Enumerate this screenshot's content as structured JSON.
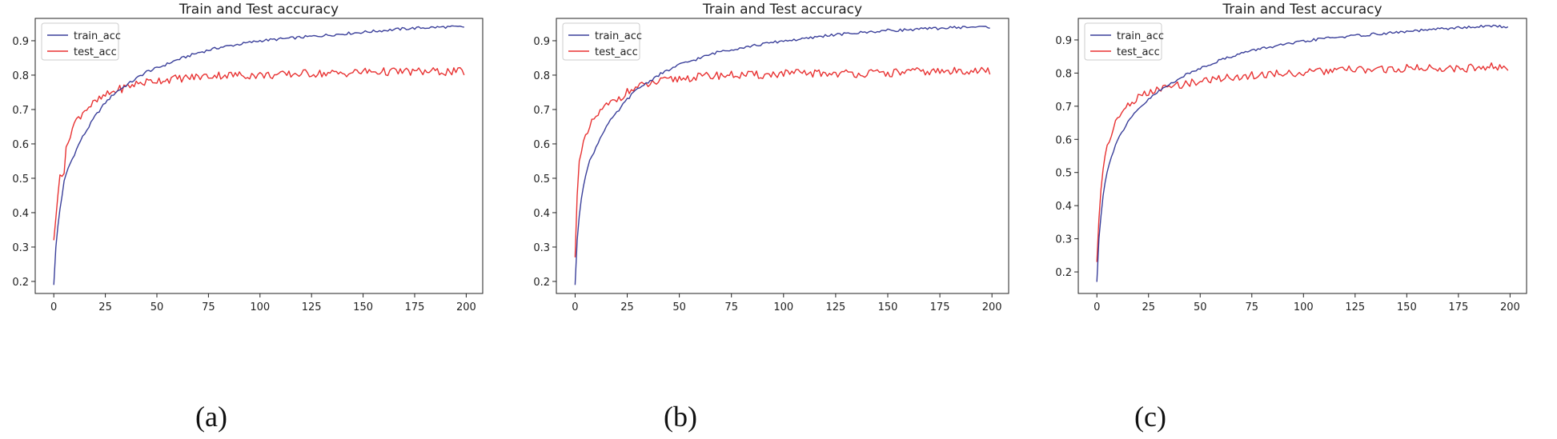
{
  "figure": {
    "captions": [
      "(a)",
      "(b)",
      "(c)"
    ]
  },
  "colors": {
    "train": "#3a3f9a",
    "test": "#e83232",
    "axis": "#222222",
    "text": "#222222"
  },
  "chart_data": [
    {
      "type": "line",
      "title": "Train and Test accuracy",
      "xlabel": "",
      "ylabel": "",
      "xlim": [
        -9,
        208
      ],
      "ylim": [
        0.165,
        0.965
      ],
      "xticks": [
        0,
        25,
        50,
        75,
        100,
        125,
        150,
        175,
        200
      ],
      "yticks": [
        0.2,
        0.3,
        0.4,
        0.5,
        0.6,
        0.7,
        0.8,
        0.9
      ],
      "legend": "upper-left",
      "grid": false,
      "series": [
        {
          "name": "train_acc",
          "color": "#3a3f9a",
          "points": [
            [
              0,
              0.19
            ],
            [
              1,
              0.3
            ],
            [
              2,
              0.36
            ],
            [
              3,
              0.41
            ],
            [
              4,
              0.45
            ],
            [
              5,
              0.49
            ],
            [
              7,
              0.53
            ],
            [
              10,
              0.57
            ],
            [
              13,
              0.61
            ],
            [
              16,
              0.64
            ],
            [
              20,
              0.68
            ],
            [
              25,
              0.72
            ],
            [
              30,
              0.75
            ],
            [
              35,
              0.77
            ],
            [
              40,
              0.79
            ],
            [
              45,
              0.81
            ],
            [
              50,
              0.82
            ],
            [
              60,
              0.845
            ],
            [
              70,
              0.865
            ],
            [
              80,
              0.88
            ],
            [
              90,
              0.89
            ],
            [
              100,
              0.9
            ],
            [
              110,
              0.905
            ],
            [
              120,
              0.91
            ],
            [
              130,
              0.915
            ],
            [
              140,
              0.92
            ],
            [
              150,
              0.925
            ],
            [
              160,
              0.93
            ],
            [
              170,
              0.935
            ],
            [
              180,
              0.938
            ],
            [
              190,
              0.94
            ],
            [
              199,
              0.94
            ]
          ]
        },
        {
          "name": "test_acc",
          "color": "#e83232",
          "points": [
            [
              0,
              0.32
            ],
            [
              2,
              0.45
            ],
            [
              3,
              0.51
            ],
            [
              5,
              0.52
            ],
            [
              6,
              0.58
            ],
            [
              8,
              0.63
            ],
            [
              10,
              0.66
            ],
            [
              15,
              0.7
            ],
            [
              20,
              0.72
            ],
            [
              25,
              0.74
            ],
            [
              30,
              0.755
            ],
            [
              40,
              0.775
            ],
            [
              50,
              0.785
            ],
            [
              60,
              0.79
            ],
            [
              70,
              0.795
            ],
            [
              80,
              0.8
            ],
            [
              90,
              0.8
            ],
            [
              100,
              0.8
            ],
            [
              110,
              0.8
            ],
            [
              120,
              0.805
            ],
            [
              130,
              0.805
            ],
            [
              140,
              0.805
            ],
            [
              150,
              0.81
            ],
            [
              160,
              0.81
            ],
            [
              170,
              0.81
            ],
            [
              180,
              0.81
            ],
            [
              190,
              0.81
            ],
            [
              199,
              0.81
            ]
          ]
        }
      ]
    },
    {
      "type": "line",
      "title": "Train and Test accuracy",
      "xlabel": "",
      "ylabel": "",
      "xlim": [
        -9,
        208
      ],
      "ylim": [
        0.165,
        0.965
      ],
      "xticks": [
        0,
        25,
        50,
        75,
        100,
        125,
        150,
        175,
        200
      ],
      "yticks": [
        0.2,
        0.3,
        0.4,
        0.5,
        0.6,
        0.7,
        0.8,
        0.9
      ],
      "legend": "upper-left",
      "grid": false,
      "series": [
        {
          "name": "train_acc",
          "color": "#3a3f9a",
          "points": [
            [
              0,
              0.19
            ],
            [
              1,
              0.32
            ],
            [
              2,
              0.39
            ],
            [
              3,
              0.44
            ],
            [
              4,
              0.48
            ],
            [
              5,
              0.51
            ],
            [
              7,
              0.55
            ],
            [
              10,
              0.59
            ],
            [
              13,
              0.63
            ],
            [
              16,
              0.66
            ],
            [
              20,
              0.69
            ],
            [
              25,
              0.73
            ],
            [
              30,
              0.76
            ],
            [
              35,
              0.78
            ],
            [
              40,
              0.8
            ],
            [
              45,
              0.815
            ],
            [
              50,
              0.83
            ],
            [
              60,
              0.85
            ],
            [
              70,
              0.87
            ],
            [
              80,
              0.88
            ],
            [
              90,
              0.89
            ],
            [
              100,
              0.9
            ],
            [
              110,
              0.905
            ],
            [
              120,
              0.915
            ],
            [
              130,
              0.92
            ],
            [
              140,
              0.925
            ],
            [
              150,
              0.93
            ],
            [
              160,
              0.932
            ],
            [
              170,
              0.935
            ],
            [
              180,
              0.938
            ],
            [
              190,
              0.94
            ],
            [
              199,
              0.94
            ]
          ]
        },
        {
          "name": "test_acc",
          "color": "#e83232",
          "points": [
            [
              0,
              0.27
            ],
            [
              1,
              0.45
            ],
            [
              2,
              0.55
            ],
            [
              4,
              0.6
            ],
            [
              6,
              0.63
            ],
            [
              8,
              0.66
            ],
            [
              10,
              0.68
            ],
            [
              15,
              0.71
            ],
            [
              20,
              0.73
            ],
            [
              25,
              0.75
            ],
            [
              30,
              0.765
            ],
            [
              40,
              0.78
            ],
            [
              50,
              0.79
            ],
            [
              60,
              0.795
            ],
            [
              70,
              0.8
            ],
            [
              80,
              0.8
            ],
            [
              90,
              0.8
            ],
            [
              100,
              0.805
            ],
            [
              110,
              0.805
            ],
            [
              120,
              0.805
            ],
            [
              130,
              0.805
            ],
            [
              140,
              0.805
            ],
            [
              150,
              0.805
            ],
            [
              160,
              0.81
            ],
            [
              170,
              0.81
            ],
            [
              180,
              0.81
            ],
            [
              190,
              0.815
            ],
            [
              199,
              0.81
            ]
          ]
        }
      ]
    },
    {
      "type": "line",
      "title": "Train and Test accuracy",
      "xlabel": "",
      "ylabel": "",
      "xlim": [
        -9,
        208
      ],
      "ylim": [
        0.135,
        0.965
      ],
      "xticks": [
        0,
        25,
        50,
        75,
        100,
        125,
        150,
        175,
        200
      ],
      "yticks": [
        0.2,
        0.3,
        0.4,
        0.5,
        0.6,
        0.7,
        0.8,
        0.9
      ],
      "legend": "upper-left",
      "grid": false,
      "series": [
        {
          "name": "train_acc",
          "color": "#3a3f9a",
          "points": [
            [
              0,
              0.17
            ],
            [
              1,
              0.3
            ],
            [
              2,
              0.37
            ],
            [
              3,
              0.43
            ],
            [
              4,
              0.47
            ],
            [
              5,
              0.5
            ],
            [
              7,
              0.55
            ],
            [
              10,
              0.6
            ],
            [
              13,
              0.63
            ],
            [
              16,
              0.66
            ],
            [
              20,
              0.69
            ],
            [
              25,
              0.72
            ],
            [
              30,
              0.745
            ],
            [
              35,
              0.765
            ],
            [
              40,
              0.785
            ],
            [
              45,
              0.8
            ],
            [
              50,
              0.815
            ],
            [
              60,
              0.84
            ],
            [
              70,
              0.86
            ],
            [
              80,
              0.875
            ],
            [
              90,
              0.885
            ],
            [
              100,
              0.895
            ],
            [
              110,
              0.905
            ],
            [
              120,
              0.91
            ],
            [
              130,
              0.915
            ],
            [
              140,
              0.92
            ],
            [
              150,
              0.925
            ],
            [
              160,
              0.93
            ],
            [
              170,
              0.935
            ],
            [
              180,
              0.938
            ],
            [
              190,
              0.942
            ],
            [
              199,
              0.94
            ]
          ]
        },
        {
          "name": "test_acc",
          "color": "#e83232",
          "points": [
            [
              0,
              0.23
            ],
            [
              1,
              0.36
            ],
            [
              2,
              0.45
            ],
            [
              3,
              0.51
            ],
            [
              4,
              0.55
            ],
            [
              5,
              0.58
            ],
            [
              7,
              0.62
            ],
            [
              10,
              0.66
            ],
            [
              13,
              0.69
            ],
            [
              16,
              0.71
            ],
            [
              20,
              0.725
            ],
            [
              25,
              0.74
            ],
            [
              30,
              0.75
            ],
            [
              40,
              0.765
            ],
            [
              50,
              0.775
            ],
            [
              60,
              0.785
            ],
            [
              70,
              0.79
            ],
            [
              80,
              0.795
            ],
            [
              90,
              0.8
            ],
            [
              100,
              0.8
            ],
            [
              110,
              0.805
            ],
            [
              120,
              0.81
            ],
            [
              130,
              0.81
            ],
            [
              140,
              0.81
            ],
            [
              150,
              0.815
            ],
            [
              160,
              0.815
            ],
            [
              170,
              0.815
            ],
            [
              180,
              0.815
            ],
            [
              190,
              0.82
            ],
            [
              199,
              0.815
            ]
          ]
        }
      ]
    }
  ]
}
